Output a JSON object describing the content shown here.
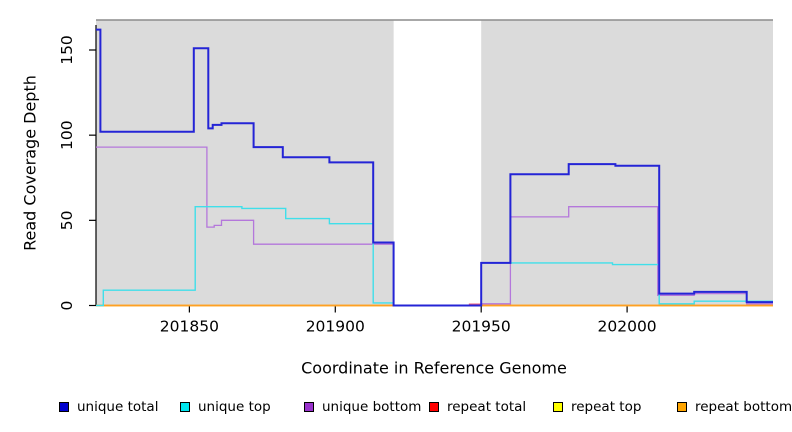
{
  "chart_data": {
    "type": "line",
    "subtype": "step-after",
    "title": "",
    "xlabel": "Coordinate in Reference Genome",
    "ylabel": "Read Coverage Depth",
    "x_range": [
      201818,
      202050
    ],
    "y_range": [
      0,
      165
    ],
    "x_ticks": [
      201850,
      201900,
      201950,
      202000
    ],
    "y_ticks": [
      0,
      50,
      100,
      150
    ],
    "grid": "off",
    "legend_position": "bottom",
    "background_color": "#ffffff",
    "shaded_region_color": "#DBDBDB",
    "shaded_region_border_color": "#8C8C8C",
    "shaded_regions": [
      [
        201818,
        201920
      ],
      [
        201950,
        202050
      ]
    ],
    "gap_region": [
      201920,
      201950
    ],
    "series": [
      {
        "name": "repeat top",
        "color": "#FFFF00",
        "width": 1.5,
        "steps": [
          [
            201818,
            0
          ],
          [
            202050,
            0
          ]
        ]
      },
      {
        "name": "repeat total",
        "color": "#ED5C7E",
        "width": 1.3,
        "steps": [
          [
            201818,
            0
          ],
          [
            201946,
            0.8
          ],
          [
            201960,
            0
          ],
          [
            202050,
            0
          ]
        ]
      },
      {
        "name": "repeat bottom",
        "color": "#FFA022",
        "width": 1.8,
        "steps": [
          [
            201818,
            0
          ],
          [
            201920,
            null
          ],
          [
            201950,
            0
          ],
          [
            202050,
            0
          ]
        ]
      },
      {
        "name": "unique bottom",
        "color": "#B477DB",
        "width": 1.3,
        "steps": [
          [
            201818,
            93
          ],
          [
            201856,
            46
          ],
          [
            201858.5,
            47
          ],
          [
            201861,
            50
          ],
          [
            201872,
            36
          ],
          [
            201920,
            0
          ],
          [
            201950,
            1
          ],
          [
            201960,
            52
          ],
          [
            201980,
            58
          ],
          [
            202010.5,
            6
          ],
          [
            202023,
            7
          ],
          [
            202041,
            1
          ],
          [
            202050,
            1
          ]
        ]
      },
      {
        "name": "unique top",
        "color": "#3FDFEA",
        "width": 1.4,
        "steps": [
          [
            201818,
            0
          ],
          [
            201820.5,
            9
          ],
          [
            201852,
            58
          ],
          [
            201868,
            57
          ],
          [
            201883,
            51
          ],
          [
            201898,
            48
          ],
          [
            201913,
            1.5
          ],
          [
            201920,
            0
          ],
          [
            201950,
            25
          ],
          [
            201995,
            24
          ],
          [
            202011,
            1
          ],
          [
            202023,
            2.5
          ],
          [
            202050,
            2.5
          ]
        ]
      },
      {
        "name": "unique total",
        "color": "#2424D6",
        "width": 2,
        "steps": [
          [
            201818,
            162
          ],
          [
            201819.5,
            102
          ],
          [
            201851.5,
            151
          ],
          [
            201856.5,
            104
          ],
          [
            201858,
            106
          ],
          [
            201861,
            107
          ],
          [
            201872,
            93
          ],
          [
            201882,
            87
          ],
          [
            201898,
            84
          ],
          [
            201913,
            37
          ],
          [
            201920,
            0
          ],
          [
            201950,
            25
          ],
          [
            201960,
            77
          ],
          [
            201980,
            83
          ],
          [
            201996,
            82
          ],
          [
            202011,
            7
          ],
          [
            202023,
            8
          ],
          [
            202041,
            2
          ],
          [
            202050,
            2
          ]
        ]
      }
    ],
    "legend": [
      {
        "label": "unique total",
        "color": "#0000CD"
      },
      {
        "label": "unique top",
        "color": "#00E5EE"
      },
      {
        "label": "unique bottom",
        "color": "#9932CC"
      },
      {
        "label": "repeat total",
        "color": "#FF0000"
      },
      {
        "label": "repeat top",
        "color": "#FFFF00"
      },
      {
        "label": "repeat bottom",
        "color": "#FFA500"
      }
    ]
  }
}
